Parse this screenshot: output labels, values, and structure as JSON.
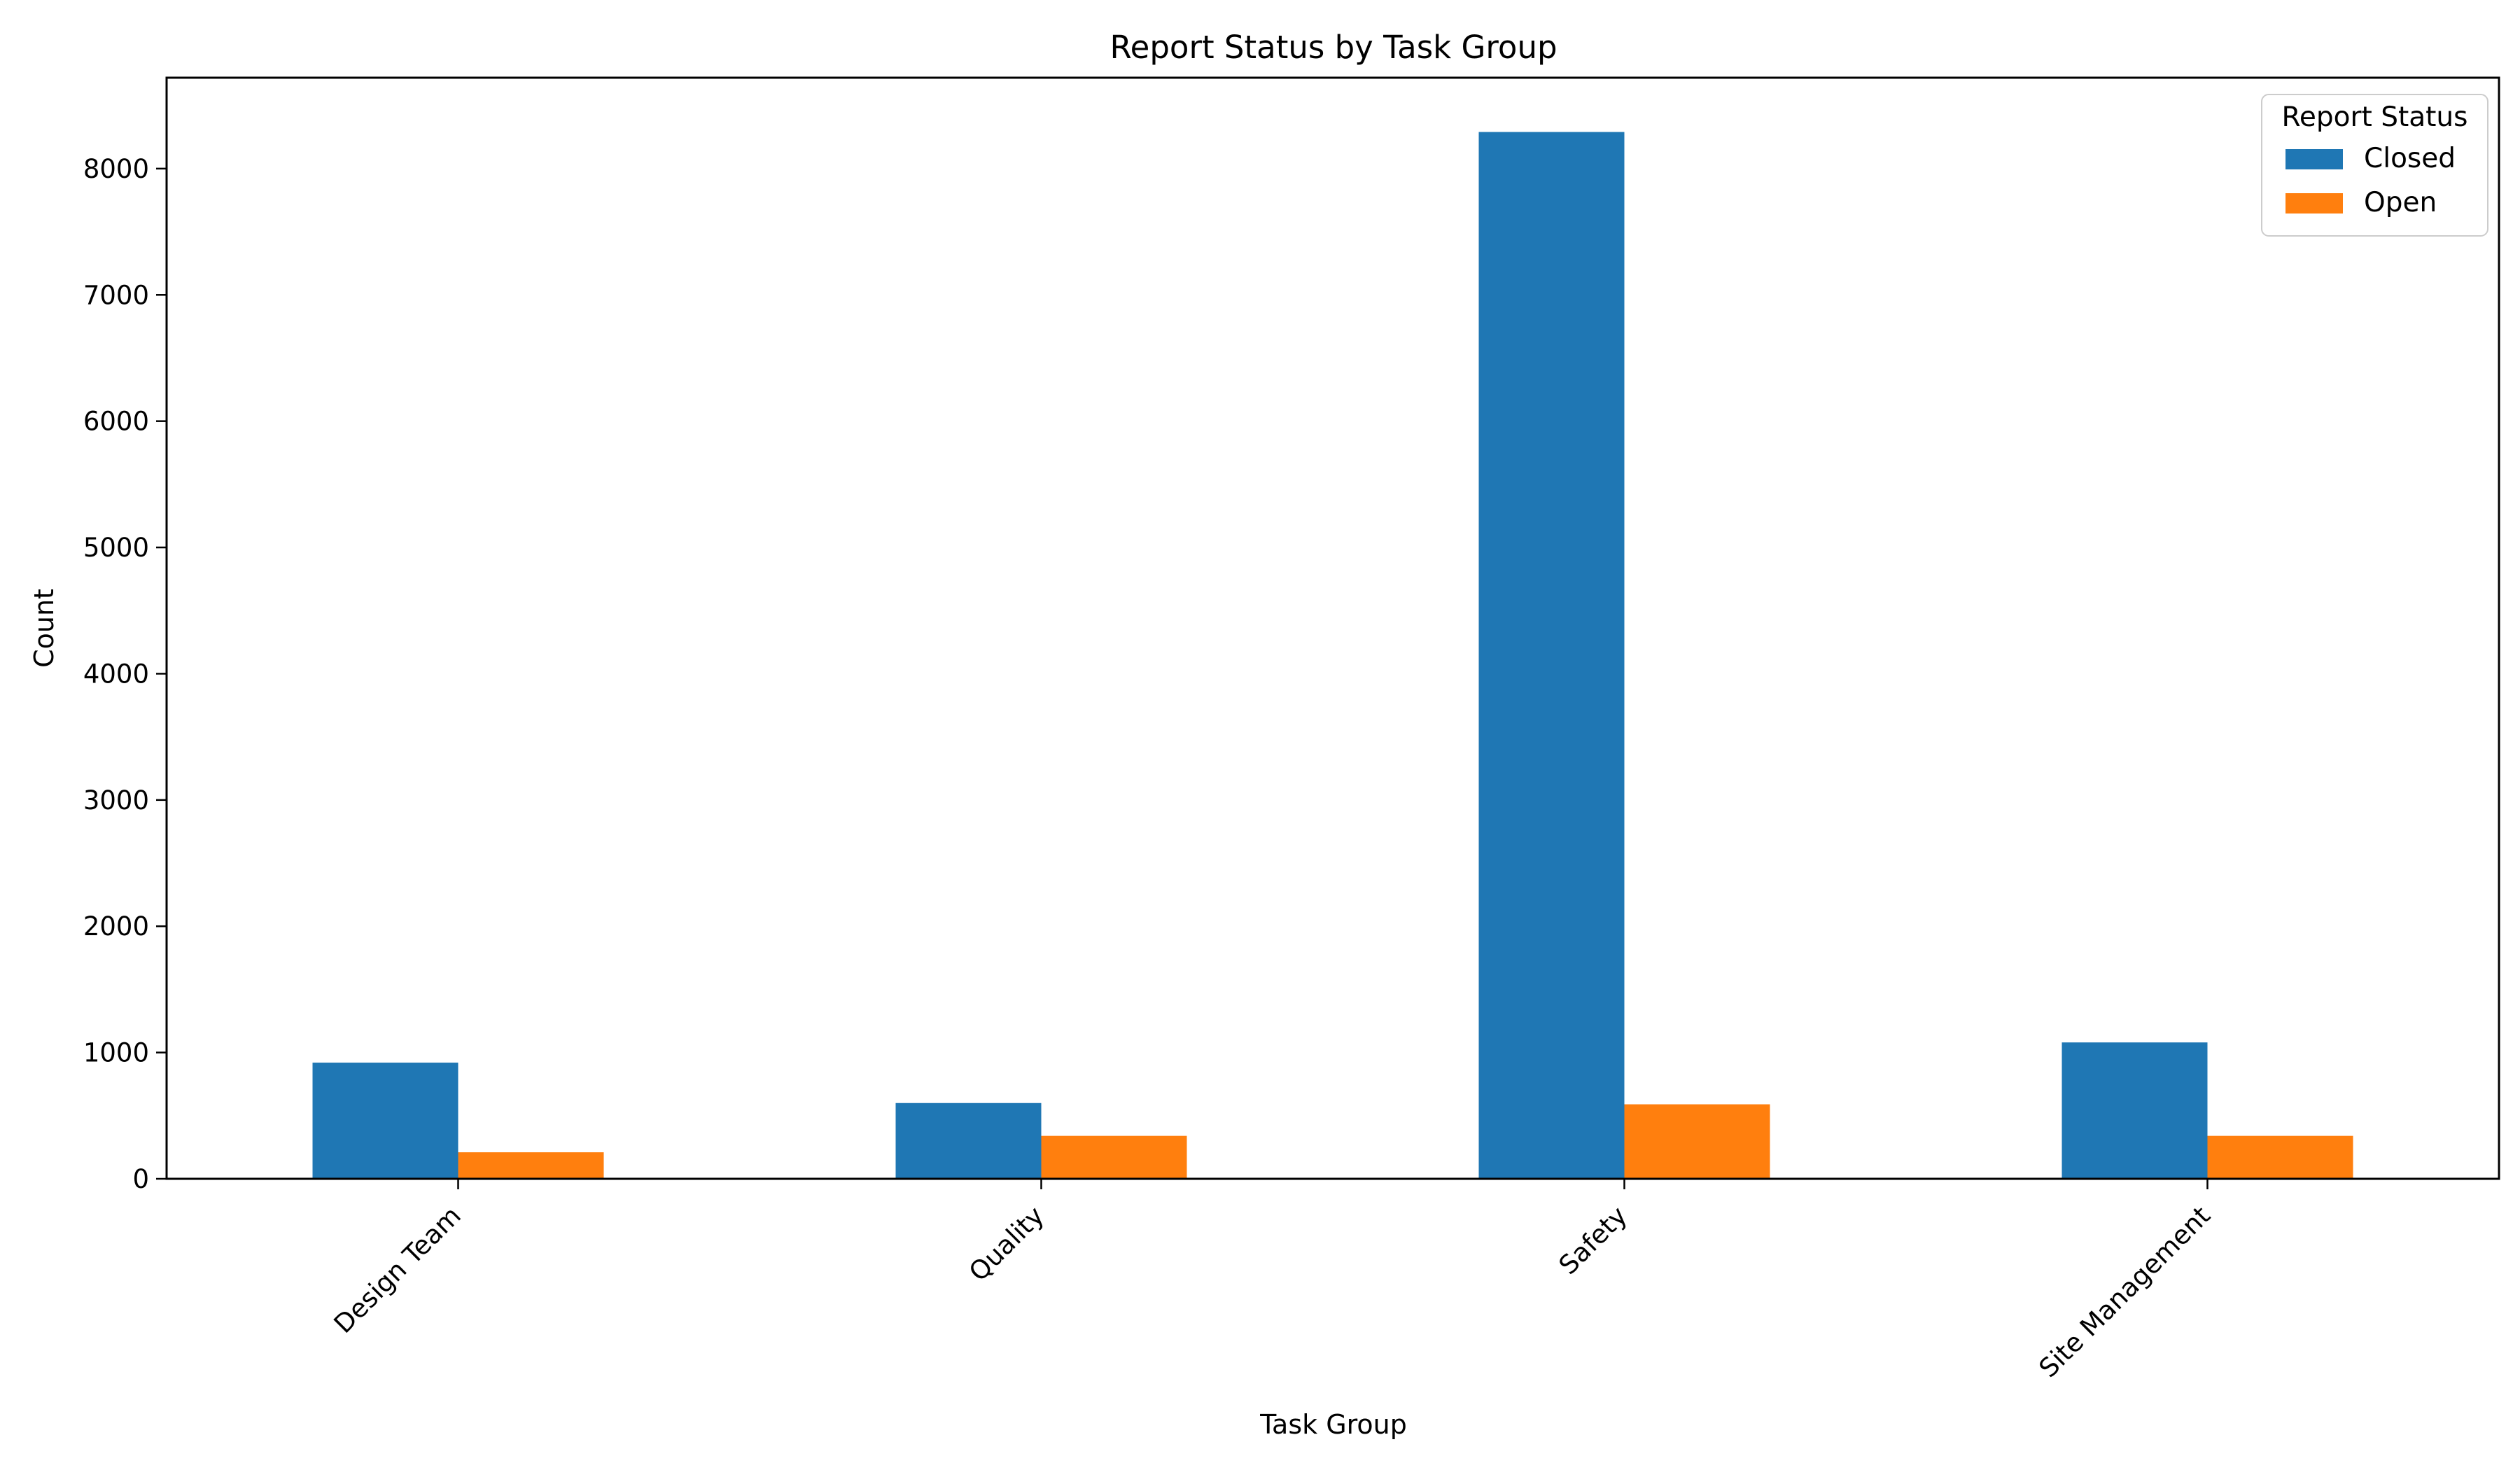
{
  "chart_data": {
    "type": "bar",
    "title": "Report Status by Task Group",
    "xlabel": "Task Group",
    "ylabel": "Count",
    "categories": [
      "Design Team",
      "Quality",
      "Safety",
      "Site Management"
    ],
    "series": [
      {
        "name": "Closed",
        "values": [
          920,
          600,
          8290,
          1080
        ],
        "color": "#1f77b4"
      },
      {
        "name": "Open",
        "values": [
          210,
          340,
          590,
          340
        ],
        "color": "#ff7f0e"
      }
    ],
    "ylim": [
      0,
      8720
    ],
    "yticks": [
      0,
      1000,
      2000,
      3000,
      4000,
      5000,
      6000,
      7000,
      8000
    ],
    "ytick_labels": [
      "0",
      "1000",
      "2000",
      "3000",
      "4000",
      "5000",
      "6000",
      "7000",
      "8000"
    ],
    "grid": false,
    "legend": {
      "title": "Report Status",
      "placement": "top-right"
    }
  }
}
